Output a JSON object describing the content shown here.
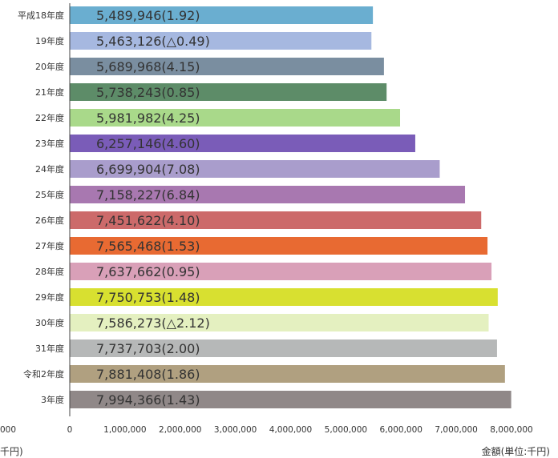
{
  "chart_data": {
    "type": "bar",
    "orientation": "horizontal",
    "categories": [
      "平成18年度",
      "19年度",
      "20年度",
      "21年度",
      "22年度",
      "23年度",
      "24年度",
      "25年度",
      "26年度",
      "27年度",
      "28年度",
      "29年度",
      "30年度",
      "31年度",
      "令和2年度",
      "3年度"
    ],
    "values": [
      5489946,
      5463126,
      5689968,
      5738243,
      5981982,
      6257146,
      6699904,
      7158227,
      7451622,
      7565468,
      7637662,
      7750753,
      7586273,
      7737703,
      7881408,
      7994366
    ],
    "bar_labels": [
      "5,489,946(1.92)",
      "5,463,126(△0.49)",
      "5,689,968(4.15)",
      "5,738,243(0.85)",
      "5,981,982(4.25)",
      "6,257,146(4.60)",
      "6,699,904(7.08)",
      "7,158,227(6.84)",
      "7,451,622(4.10)",
      "7,565,468(1.53)",
      "7,637,662(0.95)",
      "7,750,753(1.48)",
      "7,586,273(△2.12)",
      "7,737,703(2.00)",
      "7,881,408(1.86)",
      "7,994,366(1.43)"
    ],
    "colors": [
      "#6aaed0",
      "#a6b8e0",
      "#7a8ea0",
      "#5d8c68",
      "#a9d98a",
      "#7a5cb8",
      "#a99dcc",
      "#a878b0",
      "#cc6a6a",
      "#e86a32",
      "#d9a0b8",
      "#d8e030",
      "#e4f0c0",
      "#b6b8b8",
      "#b0a080",
      "#908888"
    ],
    "xticks": [
      "0",
      "1,000,000",
      "2,000,000",
      "3,000,000",
      "4,000,000",
      "5,000,000",
      "6,000,000",
      "7,000,000",
      "8,000,000"
    ],
    "xlim": [
      0,
      8000000
    ],
    "xlabel": "金額(単位:千円)",
    "left_cut_tick": "000",
    "left_cut_unit": "千円)",
    "grid": false,
    "legend": "none"
  }
}
